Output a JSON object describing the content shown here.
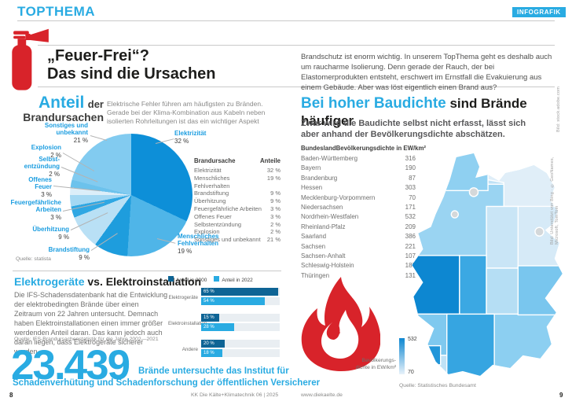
{
  "brand": {
    "accent_blue": "#29abe2",
    "dark_bar_blue": "#0e6495",
    "red": "#d8232a",
    "text_dark": "#1d1d1b",
    "text_gray": "#6f6f6e"
  },
  "header": {
    "section_label": "TOPTHEMA",
    "badge": "INFOGRAFIK",
    "title_line1": "„Feuer-Frei“?",
    "title_line2": "Das sind die Ursachen",
    "intro": "Brandschutz ist enorm wichtig. In unserem TopThema geht es deshalb auch um raucharme Isolierung. Denn gerade der Rauch, der bei Elastomerprodukten entsteht, erschwert im Ernstfall die Evakuierung aus einem Gebäude. Aber was löst eigentlich einen Brand aus?"
  },
  "pie": {
    "title_a": "Anteil",
    "title_b": "der",
    "title_c": "Brandursachen",
    "subtitle": "Elektrische Fehler führen am häufigsten zu Bränden. Gerade bei der Klima-Kombination aus Kabeln neben isolierten Rohrleitungen ist das ein wichtiger Aspekt",
    "source": "Quelle: statista",
    "callouts": [
      {
        "label": "Elektrizität",
        "value": "32 %"
      },
      {
        "label": "Menschliches Fehlverhalten",
        "value": "19 %"
      },
      {
        "label": "Brandstiftung",
        "value": "9 %"
      },
      {
        "label": "Überhitzung",
        "value": "9 %"
      },
      {
        "label": "Feuergefährliche Arbeiten",
        "value": "3 %"
      },
      {
        "label": "Offenes Feuer",
        "value": "3 %"
      },
      {
        "label": "Selbst­entzündung",
        "value": "2 %"
      },
      {
        "label": "Explosion",
        "value": "2 %"
      },
      {
        "label": "Sonstiges und unbekannt",
        "value": "21 %"
      }
    ],
    "table": {
      "col1": "Brandursache",
      "col2": "Anteile",
      "rows": [
        {
          "name": "Elektrizität",
          "value": "32 %"
        },
        {
          "name": "Menschliches Fehlverhalten",
          "value": "19 %"
        },
        {
          "name": "Brandstiftung",
          "value": "9 %"
        },
        {
          "name": "Überhitzung",
          "value": "9 %"
        },
        {
          "name": "Feuergefährliche Arbeiten",
          "value": "3 %"
        },
        {
          "name": "Offenes Feuer",
          "value": "3 %"
        },
        {
          "name": "Selbstentzündung",
          "value": "2 %"
        },
        {
          "name": "Explosion",
          "value": "2 %"
        },
        {
          "name": "Sonstiges und unbekannt",
          "value": "21 %"
        }
      ]
    }
  },
  "elektro": {
    "heading_a": "Elektrogeräte",
    "heading_b": " vs. Elektroinstallation",
    "body": "Die IFS-Schadensdatenbank hat die Entwicklung der elektrobedingten Brände über einen Zeitraum von 22 Jahren untersucht. Demnach haben Elektroinstallationen einen immer größer werdenden Anteil daran. Das kann jedoch auch daran liegen, dass Elektrogeräte sicherer werden.",
    "source": "Quelle: IFS-Brandursachenstatistik für die Jahre 2002—2021",
    "legend1": "Anteil in 2000",
    "legend2": "Anteil in 2022",
    "rows": [
      {
        "name": "Elektrogeräte",
        "v1": "65 %",
        "v2": "54 %"
      },
      {
        "name": "Elektroinstallation",
        "v1": "15 %",
        "v2": "28 %"
      },
      {
        "name": "Andere",
        "v1": "20 %",
        "v2": "18 %"
      }
    ]
  },
  "bignumber": {
    "value": "23.439",
    "cap_line1": "Brände untersuchte das Institut für",
    "cap_line2": "Schadenverhütung und Schadenforschung der öffentlichen Versicherer"
  },
  "baudichte": {
    "heading_a": "Bei hoher Baudichte",
    "heading_b": " sind Brände häufiger",
    "subtitle": "Zwar wird die Baudichte selbst nicht erfasst, lässt sich aber anhand der Bevölkerungsdichte abschätzen.",
    "col1": "Bundesland",
    "col2": "Bevölkerungsdichte in EW/km²",
    "rows": [
      {
        "name": "Baden-Württemberg",
        "value": "316"
      },
      {
        "name": "Bayern",
        "value": "190"
      },
      {
        "name": "Brandenburg",
        "value": "87"
      },
      {
        "name": "Hessen",
        "value": "303"
      },
      {
        "name": "Mecklenburg-Vorpommern",
        "value": "70"
      },
      {
        "name": "Niedersachsen",
        "value": "171"
      },
      {
        "name": "Nordrhein-Westfalen",
        "value": "532"
      },
      {
        "name": "Rheinland-Pfalz",
        "value": "209"
      },
      {
        "name": "Saarland",
        "value": "386"
      },
      {
        "name": "Sachsen",
        "value": "221"
      },
      {
        "name": "Sachsen-Anhalt",
        "value": "107"
      },
      {
        "name": "Schleswig-Holstein",
        "value": "187"
      },
      {
        "name": "Thüringen",
        "value": "131"
      }
    ],
    "legend_max": "532",
    "legend_min": "70",
    "legend_cap1": "Bevölkerungs-",
    "legend_cap2": "dichte in EW/km²",
    "source": "Quelle: Statistisches Bundesamt"
  },
  "map": {
    "base_color": "#bfe2f6",
    "regions": [
      {
        "name": "Schleswig-Holstein",
        "color": "#8fd0f1"
      },
      {
        "name": "Mecklenburg-Vorpommern",
        "color": "#e0eef8"
      },
      {
        "name": "Niedersachsen",
        "color": "#9ad4f2"
      },
      {
        "name": "Brandenburg",
        "color": "#d6eaf7"
      },
      {
        "name": "Sachsen-Anhalt",
        "color": "#c9e5f6"
      },
      {
        "name": "Nordrhein-Westfalen",
        "color": "#0d87d1"
      },
      {
        "name": "Hessen",
        "color": "#3ba8e3"
      },
      {
        "name": "Thüringen",
        "color": "#b5def4"
      },
      {
        "name": "Sachsen",
        "color": "#79c6ee"
      },
      {
        "name": "Rheinland-Pfalz",
        "color": "#7fc9ef"
      },
      {
        "name": "Saarland",
        "color": "#2196d9"
      },
      {
        "name": "Baden-Württemberg",
        "color": "#36a5e1"
      },
      {
        "name": "Bayern",
        "color": "#8ccff1"
      },
      {
        "name": "Hamburg",
        "color": "#d4d8da"
      },
      {
        "name": "Bremen",
        "color": "#d4d8da"
      },
      {
        "name": "Berlin",
        "color": "#d4d8da"
      }
    ]
  },
  "footer": {
    "left_page": "8",
    "journal": "KK Die Kälte+Klimatechnik 06 | 2025",
    "site": "www.diekaelte.de",
    "right_page": "9"
  },
  "credits": {
    "photo": "Bild: stock.adobe.com",
    "map": "Bild: Unterstützt von Bing · © GeoNames, Microsoft, TomTom"
  },
  "chart_data": [
    {
      "type": "pie",
      "title": "Anteil der Brandursachen",
      "labels": [
        "Elektrizität",
        "Menschliches Fehlverhalten",
        "Brandstiftung",
        "Überhitzung",
        "Feuergefährliche Arbeiten",
        "Offenes Feuer",
        "Selbstentzündung",
        "Explosion",
        "Sonstiges und unbekannt"
      ],
      "values": [
        32,
        19,
        9,
        9,
        3,
        3,
        2,
        2,
        21
      ],
      "unit": "%",
      "colors": [
        "#0d8fd8",
        "#4fb5e8",
        "#1e9ddd",
        "#b9e0f5",
        "#2fa7e3",
        "#a4d8f3",
        "#dceef9",
        "#6cc2ec",
        "#82cbf0"
      ],
      "source": "Quelle: statista"
    },
    {
      "type": "bar",
      "title": "Elektrogeräte vs. Elektroinstallation",
      "orientation": "horizontal",
      "categories": [
        "Elektrogeräte",
        "Elektroinstallation",
        "Andere"
      ],
      "series": [
        {
          "name": "Anteil in 2000",
          "color": "#0e6495",
          "values": [
            65,
            15,
            20
          ]
        },
        {
          "name": "Anteil in 2022",
          "color": "#29abe2",
          "values": [
            54,
            28,
            18
          ]
        }
      ],
      "unit": "%",
      "xlim": [
        0,
        70
      ],
      "legend_position": "top",
      "source": "Quelle: IFS-Brandursachenstatistik für die Jahre 2002—2021"
    },
    {
      "type": "heatmap",
      "title": "Bevölkerungsdichte in EW/km²",
      "categories": [
        "Baden-Württemberg",
        "Bayern",
        "Brandenburg",
        "Hessen",
        "Mecklenburg-Vorpommern",
        "Niedersachsen",
        "Nordrhein-Westfalen",
        "Rheinland-Pfalz",
        "Saarland",
        "Sachsen",
        "Sachsen-Anhalt",
        "Schleswig-Holstein",
        "Thüringen"
      ],
      "values": [
        316,
        190,
        87,
        303,
        70,
        171,
        532,
        209,
        386,
        221,
        107,
        187,
        131
      ],
      "range": [
        70,
        532
      ],
      "legend_position": "left",
      "source": "Quelle: Statistisches Bundesamt"
    }
  ]
}
